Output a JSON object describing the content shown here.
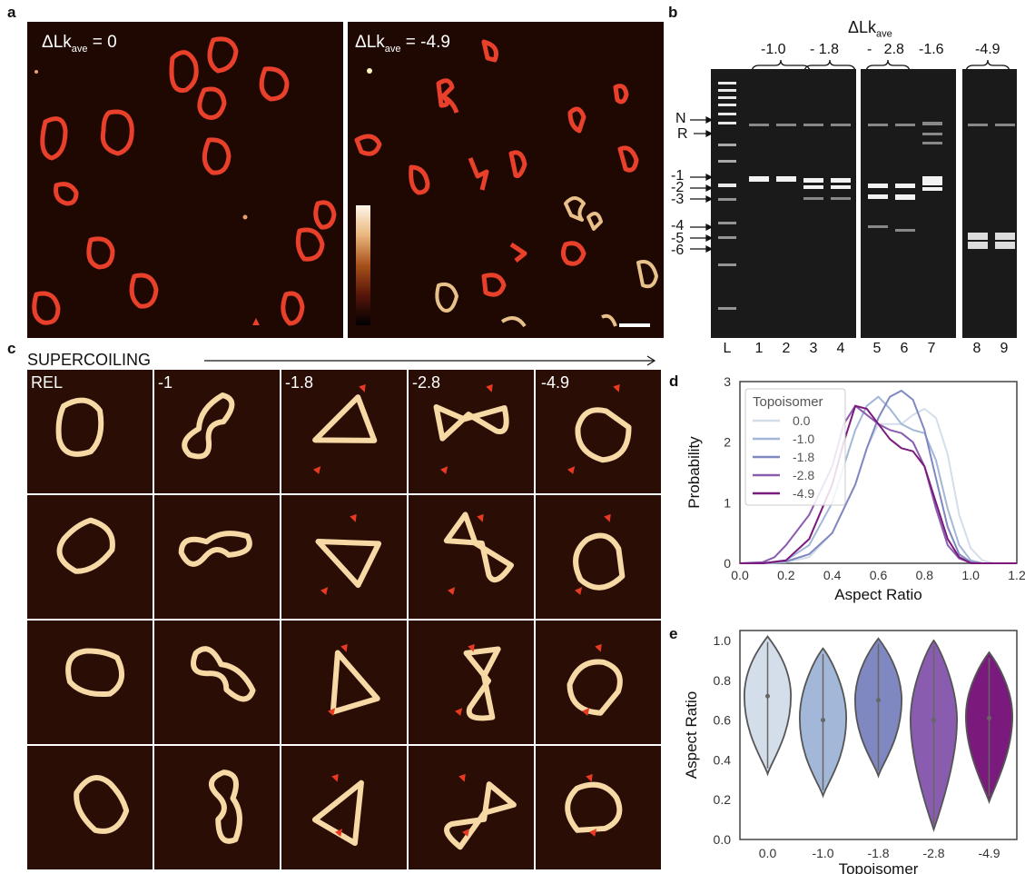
{
  "panel_labels": {
    "a": "a",
    "b": "b",
    "c": "c",
    "d": "d",
    "e": "e"
  },
  "panel_a": {
    "left_label_prefix": "ΔLk",
    "left_label_sub": "ave",
    "left_label_value": "= 0",
    "right_label_prefix": "ΔLk",
    "right_label_sub": "ave",
    "right_label_value": "= -4.9"
  },
  "panel_b": {
    "title_prefix": "ΔLk",
    "title_sub": "ave",
    "groups": [
      "-1.0",
      "- 1.8",
      "-   2.8",
      "-1.6",
      "-4.9"
    ],
    "left_markers": [
      "N",
      "R",
      "-1",
      "-2",
      "-3",
      "-4",
      "-5",
      "-6"
    ],
    "lanes": [
      "L",
      "1",
      "2",
      "3",
      "4",
      "5",
      "6",
      "7",
      "8",
      "9"
    ]
  },
  "panel_c": {
    "axis_label": "SUPERCOILING",
    "columns": [
      "REL",
      "-1",
      "-1.8",
      "-2.8",
      "-4.9"
    ]
  },
  "panel_d": {
    "chart_data": {
      "type": "line",
      "xlabel": "Aspect Ratio",
      "ylabel": "Probability",
      "xlim": [
        0.0,
        1.2
      ],
      "ylim": [
        0,
        3
      ],
      "xticks": [
        "0.0",
        "0.2",
        "0.4",
        "0.6",
        "0.8",
        "1.0",
        "1.2"
      ],
      "yticks": [
        "0",
        "1",
        "2",
        "3"
      ],
      "legend_title": "Topoisomer",
      "legend_position": "top-left",
      "series": [
        {
          "name": "0.0",
          "color": "#d3deea",
          "x": [
            0.0,
            0.1,
            0.2,
            0.3,
            0.4,
            0.5,
            0.55,
            0.6,
            0.65,
            0.7,
            0.75,
            0.8,
            0.85,
            0.9,
            0.95,
            1.0,
            1.05,
            1.1,
            1.2
          ],
          "y": [
            0,
            0,
            0.02,
            0.1,
            0.5,
            1.3,
            1.9,
            2.3,
            2.3,
            2.3,
            2.45,
            2.55,
            2.4,
            1.8,
            0.8,
            0.25,
            0.05,
            0,
            0
          ]
        },
        {
          "name": "-1.0",
          "color": "#a3b7d8",
          "x": [
            0.0,
            0.1,
            0.2,
            0.3,
            0.4,
            0.5,
            0.55,
            0.6,
            0.65,
            0.7,
            0.75,
            0.8,
            0.85,
            0.9,
            0.95,
            1.0,
            1.05,
            1.2
          ],
          "y": [
            0,
            0,
            0.05,
            0.3,
            1.0,
            2.2,
            2.6,
            2.75,
            2.55,
            2.3,
            2.2,
            2.15,
            1.7,
            0.9,
            0.3,
            0.05,
            0,
            0
          ]
        },
        {
          "name": "-1.8",
          "color": "#7f88c0",
          "x": [
            0.0,
            0.1,
            0.2,
            0.3,
            0.4,
            0.5,
            0.55,
            0.6,
            0.65,
            0.7,
            0.75,
            0.8,
            0.85,
            0.9,
            0.95,
            1.0,
            1.05,
            1.2
          ],
          "y": [
            0,
            0,
            0.03,
            0.15,
            0.5,
            1.3,
            1.9,
            2.4,
            2.75,
            2.85,
            2.7,
            2.2,
            1.4,
            0.6,
            0.15,
            0.02,
            0,
            0
          ]
        },
        {
          "name": "-2.8",
          "color": "#8a5cb0",
          "x": [
            0.0,
            0.1,
            0.15,
            0.2,
            0.3,
            0.4,
            0.45,
            0.5,
            0.55,
            0.6,
            0.65,
            0.7,
            0.75,
            0.8,
            0.85,
            0.9,
            0.95,
            1.0,
            1.05,
            1.2
          ],
          "y": [
            0,
            0.02,
            0.1,
            0.3,
            0.8,
            1.6,
            2.3,
            2.6,
            2.45,
            2.3,
            2.2,
            2.15,
            2.0,
            1.6,
            0.9,
            0.3,
            0.08,
            0.01,
            0,
            0
          ]
        },
        {
          "name": "-4.9",
          "color": "#7b1a7d",
          "x": [
            0.0,
            0.1,
            0.2,
            0.3,
            0.4,
            0.45,
            0.5,
            0.55,
            0.6,
            0.65,
            0.7,
            0.75,
            0.8,
            0.85,
            0.9,
            0.95,
            1.0,
            1.2
          ],
          "y": [
            0,
            0,
            0.05,
            0.4,
            1.3,
            2.0,
            2.6,
            2.55,
            2.3,
            2.05,
            1.9,
            1.85,
            1.6,
            1.0,
            0.4,
            0.1,
            0,
            0
          ]
        }
      ]
    }
  },
  "panel_e": {
    "chart_data": {
      "type": "violin",
      "xlabel": "Topoisomer",
      "ylabel": "Aspect Ratio",
      "ylim": [
        0.0,
        1.05
      ],
      "yticks": [
        "0.0",
        "0.2",
        "0.4",
        "0.6",
        "0.8",
        "1.0"
      ],
      "categories": [
        "0.0",
        "-1.0",
        "-1.8",
        "-2.8",
        "-4.9"
      ],
      "colors": [
        "#d3deea",
        "#a3b7d8",
        "#7f88c0",
        "#8a5cb0",
        "#7b1a7d"
      ],
      "medians": [
        0.72,
        0.6,
        0.7,
        0.6,
        0.61
      ],
      "min": [
        0.33,
        0.22,
        0.32,
        0.05,
        0.19
      ],
      "max": [
        1.02,
        0.96,
        1.01,
        1.0,
        0.94
      ],
      "q1": [
        0.62,
        0.5,
        0.6,
        0.48,
        0.52
      ],
      "q3": [
        0.82,
        0.72,
        0.8,
        0.72,
        0.72
      ]
    }
  }
}
